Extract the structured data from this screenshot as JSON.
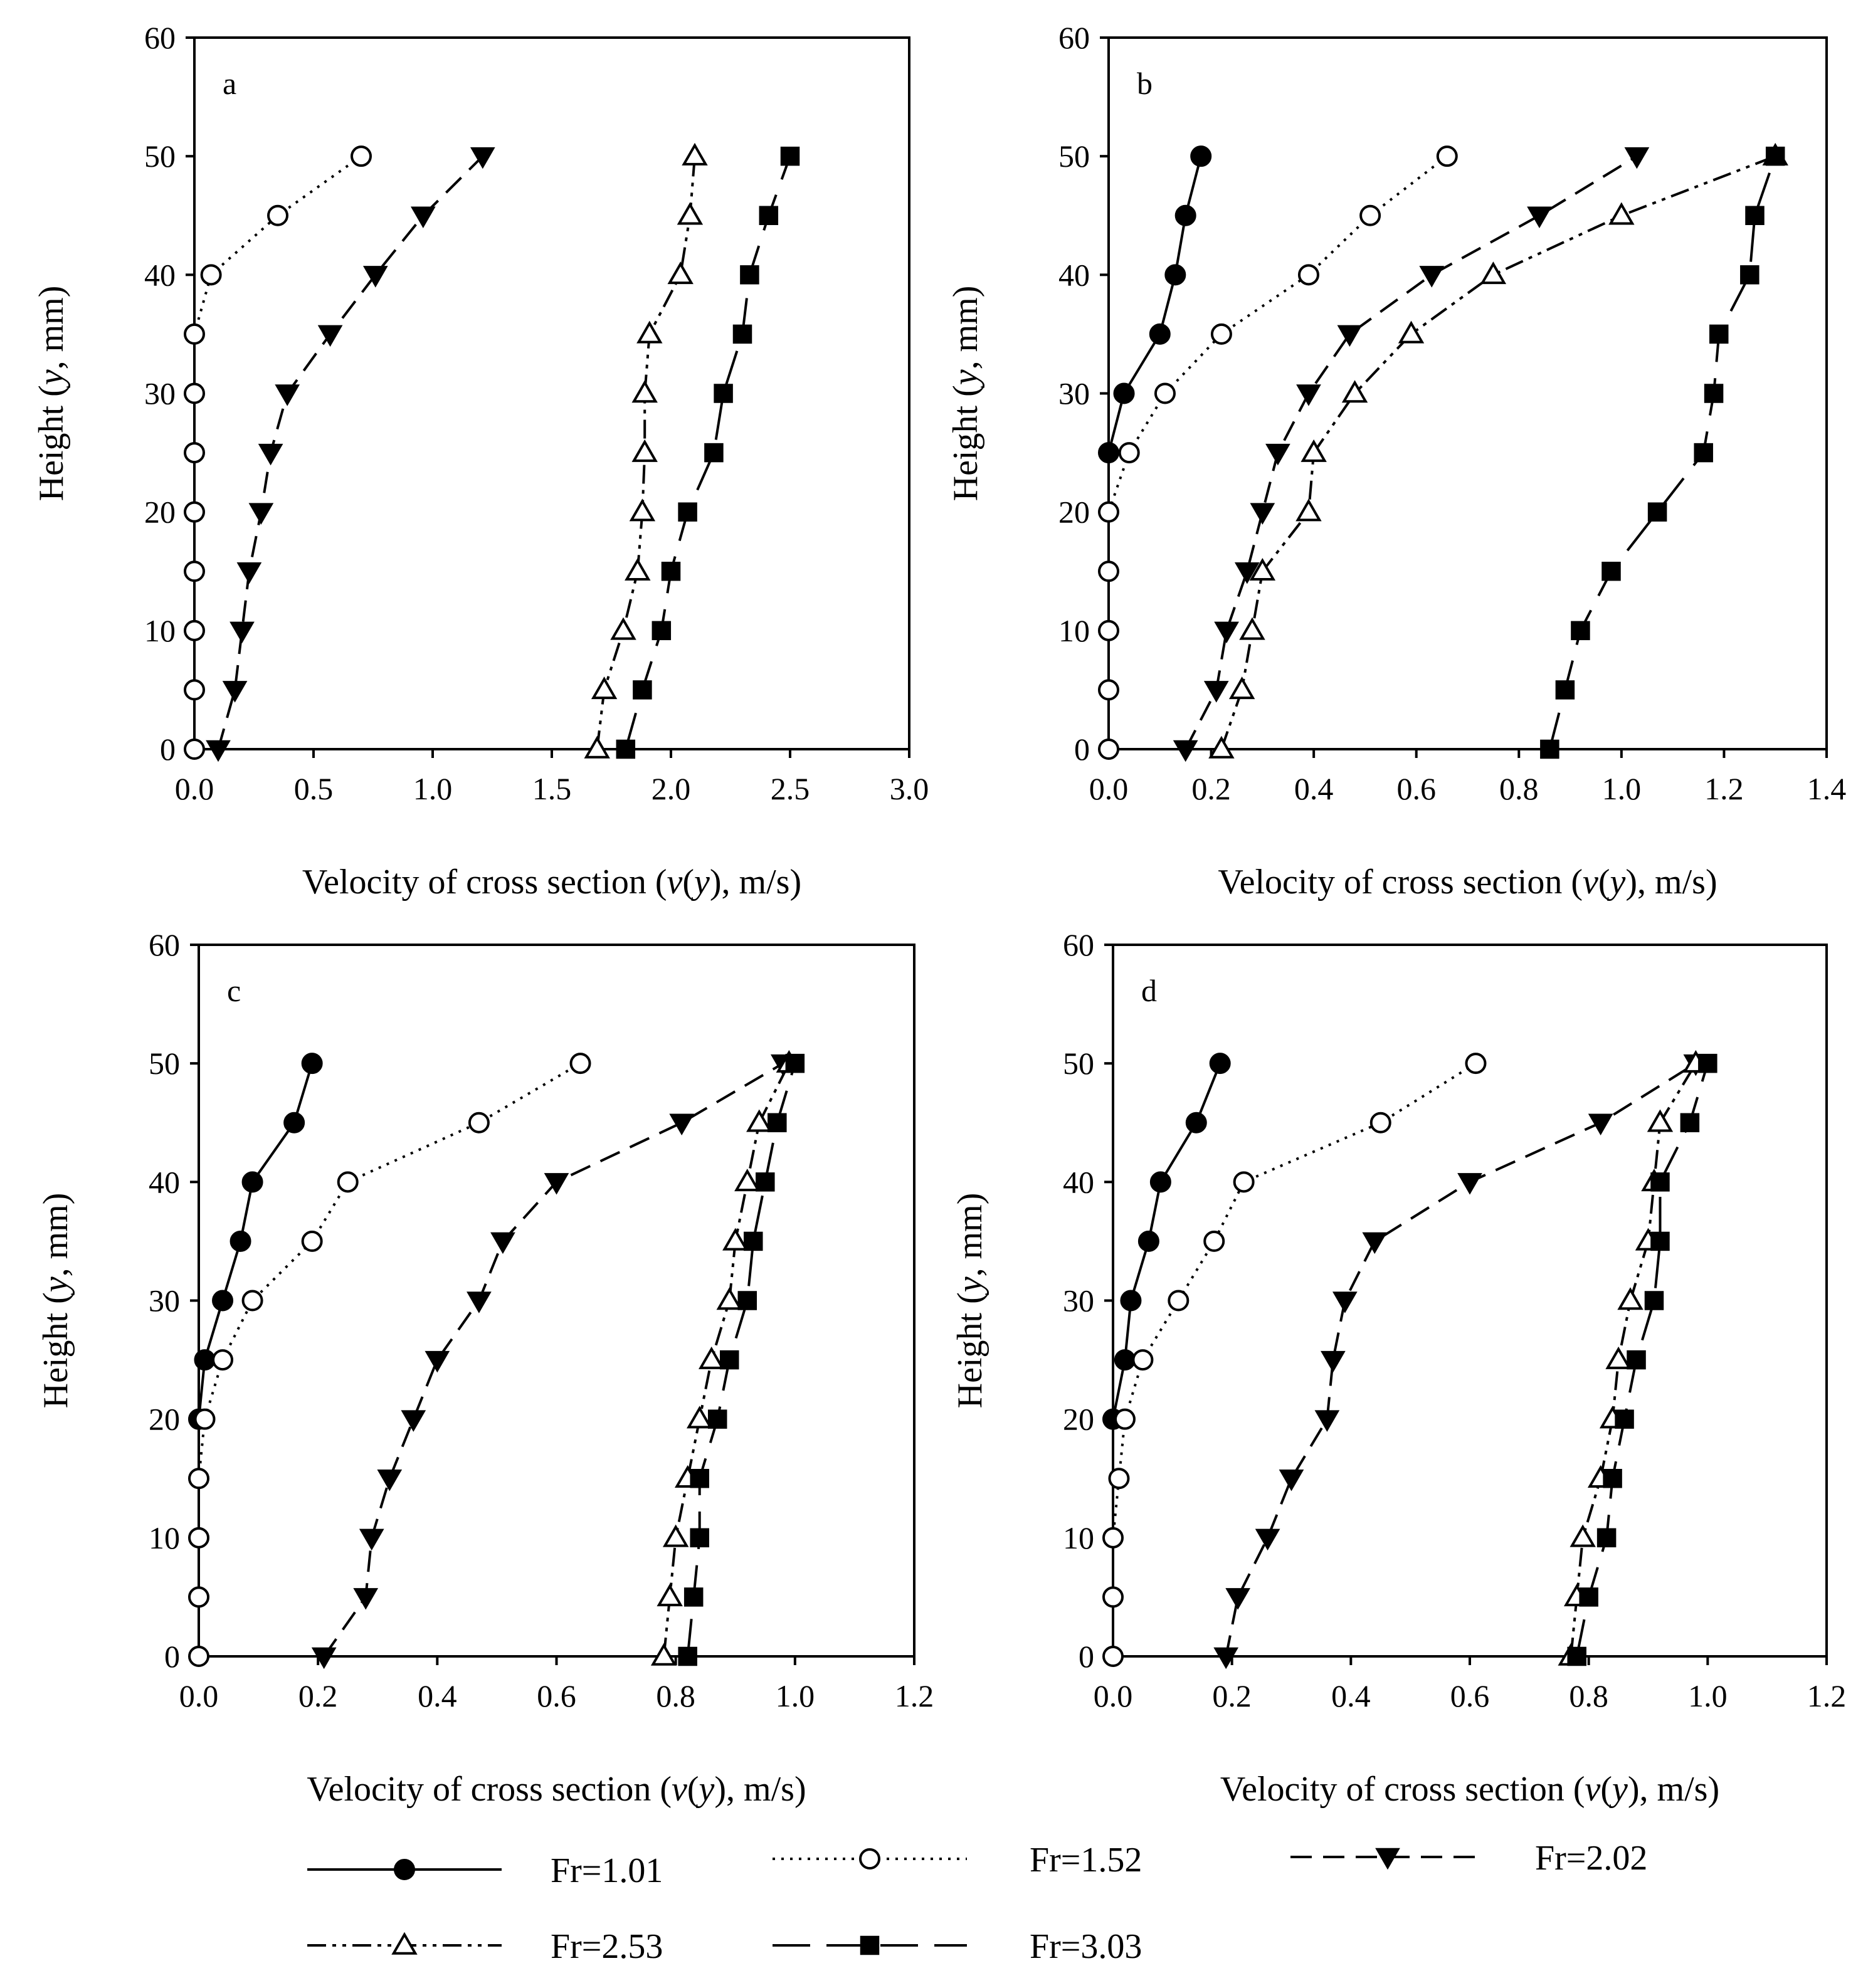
{
  "figure": {
    "legend": [
      {
        "label": "Fr=1.01",
        "series": 0
      },
      {
        "label": "Fr=1.52",
        "series": 1
      },
      {
        "label": "Fr=2.02",
        "series": 2
      },
      {
        "label": "Fr=2.53",
        "series": 3
      },
      {
        "label": "Fr=3.03",
        "series": 4
      }
    ],
    "series_styles": [
      {
        "name": "Fr=1.01",
        "marker": "circle-filled",
        "line": "solid"
      },
      {
        "name": "Fr=1.52",
        "marker": "circle-open",
        "line": "dotted"
      },
      {
        "name": "Fr=2.02",
        "marker": "triangle-down-filled",
        "line": "dashed"
      },
      {
        "name": "Fr=2.53",
        "marker": "triangle-up-open",
        "line": "dash-dot-dot"
      },
      {
        "name": "Fr=3.03",
        "marker": "square-filled",
        "line": "long-dash"
      }
    ]
  },
  "chart_data": [
    {
      "type": "line",
      "panel": "a",
      "xlabel": "Velocity of cross section (v(y), m/s)",
      "ylabel": "Height (y, mm)",
      "xlim": [
        0,
        3.0
      ],
      "ylim": [
        0,
        60
      ],
      "xticks": [
        "0.0",
        "0.5",
        "1.0",
        "1.5",
        "2.0",
        "2.5",
        "3.0"
      ],
      "xtick_values": [
        0,
        0.5,
        1.0,
        1.5,
        2.0,
        2.5,
        3.0
      ],
      "yticks": [
        "0",
        "10",
        "20",
        "30",
        "40",
        "50",
        "60"
      ],
      "ytick_values": [
        0,
        10,
        20,
        30,
        40,
        50,
        60
      ],
      "y": [
        0,
        5,
        10,
        15,
        20,
        25,
        30,
        35,
        40,
        45,
        50
      ],
      "series": [
        {
          "name": "Fr=1.52",
          "style": 1,
          "x": [
            0.0,
            0.0,
            0.0,
            0.0,
            0.0,
            0.0,
            0.0,
            0.0,
            0.07,
            0.35,
            0.7
          ]
        },
        {
          "name": "Fr=2.02",
          "style": 2,
          "x": [
            0.1,
            0.17,
            0.2,
            0.23,
            0.28,
            0.32,
            0.39,
            0.57,
            0.76,
            0.96,
            1.21
          ]
        },
        {
          "name": "Fr=2.53",
          "style": 3,
          "x": [
            1.69,
            1.72,
            1.8,
            1.86,
            1.88,
            1.89,
            1.89,
            1.91,
            2.04,
            2.08,
            2.1
          ]
        },
        {
          "name": "Fr=3.03",
          "style": 4,
          "x": [
            1.81,
            1.88,
            1.96,
            2.0,
            2.07,
            2.18,
            2.22,
            2.3,
            2.33,
            2.41,
            2.5
          ]
        }
      ]
    },
    {
      "type": "line",
      "panel": "b",
      "xlabel": "Velocity of cross section (v(y), m/s)",
      "ylabel": "Height (y, mm)",
      "xlim": [
        0,
        1.4
      ],
      "ylim": [
        0,
        60
      ],
      "xticks": [
        "0.0",
        "0.2",
        "0.4",
        "0.6",
        "0.8",
        "1.0",
        "1.2",
        "1.4"
      ],
      "xtick_values": [
        0,
        0.2,
        0.4,
        0.6,
        0.8,
        1.0,
        1.2,
        1.4
      ],
      "yticks": [
        "0",
        "10",
        "20",
        "30",
        "40",
        "50",
        "60"
      ],
      "ytick_values": [
        0,
        10,
        20,
        30,
        40,
        50,
        60
      ],
      "y": [
        0,
        5,
        10,
        15,
        20,
        25,
        30,
        35,
        40,
        45,
        50
      ],
      "series": [
        {
          "name": "Fr=1.01",
          "style": 0,
          "y": [
            25,
            30,
            35,
            40,
            45,
            50
          ],
          "x": [
            0.0,
            0.03,
            0.1,
            0.13,
            0.15,
            0.18
          ]
        },
        {
          "name": "Fr=1.52",
          "style": 1,
          "x": [
            0.0,
            0.0,
            0.0,
            0.0,
            0.0,
            0.04,
            0.11,
            0.22,
            0.39,
            0.51,
            0.66
          ]
        },
        {
          "name": "Fr=2.02",
          "style": 2,
          "x": [
            0.15,
            0.21,
            0.23,
            0.27,
            0.3,
            0.33,
            0.39,
            0.47,
            0.63,
            0.84,
            1.03
          ]
        },
        {
          "name": "Fr=2.53",
          "style": 3,
          "x": [
            0.22,
            0.26,
            0.28,
            0.3,
            0.39,
            0.4,
            0.48,
            0.59,
            0.75,
            1.0,
            1.3
          ]
        },
        {
          "name": "Fr=3.03",
          "style": 4,
          "x": [
            0.86,
            0.89,
            0.92,
            0.98,
            1.07,
            1.16,
            1.18,
            1.19,
            1.25,
            1.26,
            1.3
          ]
        }
      ]
    },
    {
      "type": "line",
      "panel": "c",
      "xlabel": "Velocity of cross section (v(y), m/s)",
      "ylabel": "Height (y, mm)",
      "xlim": [
        0,
        1.2
      ],
      "ylim": [
        0,
        60
      ],
      "xticks": [
        "0.0",
        "0.2",
        "0.4",
        "0.6",
        "0.8",
        "1.0",
        "1.2"
      ],
      "xtick_values": [
        0,
        0.2,
        0.4,
        0.6,
        0.8,
        1.0,
        1.2
      ],
      "yticks": [
        "0",
        "10",
        "20",
        "30",
        "40",
        "50",
        "60"
      ],
      "ytick_values": [
        0,
        10,
        20,
        30,
        40,
        50,
        60
      ],
      "y": [
        0,
        5,
        10,
        15,
        20,
        25,
        30,
        35,
        40,
        45,
        50
      ],
      "series": [
        {
          "name": "Fr=1.01",
          "style": 0,
          "y": [
            20,
            25,
            30,
            35,
            40,
            45,
            50
          ],
          "x": [
            0.0,
            0.01,
            0.04,
            0.07,
            0.09,
            0.16,
            0.19
          ]
        },
        {
          "name": "Fr=1.52",
          "style": 1,
          "x": [
            0.0,
            0.0,
            0.0,
            0.0,
            0.01,
            0.04,
            0.09,
            0.19,
            0.25,
            0.47,
            0.64
          ]
        },
        {
          "name": "Fr=2.02",
          "style": 2,
          "x": [
            0.21,
            0.28,
            0.29,
            0.32,
            0.36,
            0.4,
            0.47,
            0.51,
            0.6,
            0.81,
            0.98
          ]
        },
        {
          "name": "Fr=2.53",
          "style": 3,
          "x": [
            0.78,
            0.79,
            0.8,
            0.82,
            0.84,
            0.86,
            0.89,
            0.9,
            0.92,
            0.94,
            0.99
          ]
        },
        {
          "name": "Fr=3.03",
          "style": 4,
          "x": [
            0.82,
            0.83,
            0.84,
            0.84,
            0.87,
            0.89,
            0.92,
            0.93,
            0.95,
            0.97,
            1.0
          ]
        }
      ]
    },
    {
      "type": "line",
      "panel": "d",
      "xlabel": "Velocity of cross section (v(y), m/s)",
      "ylabel": "Height (y, mm)",
      "xlim": [
        0,
        1.2
      ],
      "ylim": [
        0,
        60
      ],
      "xticks": [
        "0.0",
        "0.2",
        "0.4",
        "0.6",
        "0.8",
        "1.0",
        "1.2"
      ],
      "xtick_values": [
        0,
        0.2,
        0.4,
        0.6,
        0.8,
        1.0,
        1.2
      ],
      "yticks": [
        "0",
        "10",
        "20",
        "30",
        "40",
        "50",
        "60"
      ],
      "ytick_values": [
        0,
        10,
        20,
        30,
        40,
        50,
        60
      ],
      "y": [
        0,
        5,
        10,
        15,
        20,
        25,
        30,
        35,
        40,
        45,
        50
      ],
      "series": [
        {
          "name": "Fr=1.01",
          "style": 0,
          "y": [
            20,
            25,
            30,
            35,
            40,
            45,
            50
          ],
          "x": [
            0.0,
            0.02,
            0.03,
            0.06,
            0.08,
            0.14,
            0.18
          ]
        },
        {
          "name": "Fr=1.52",
          "style": 1,
          "x": [
            0.0,
            0.0,
            0.0,
            0.01,
            0.02,
            0.05,
            0.11,
            0.17,
            0.22,
            0.45,
            0.61
          ]
        },
        {
          "name": "Fr=2.02",
          "style": 2,
          "x": [
            0.19,
            0.21,
            0.26,
            0.3,
            0.36,
            0.37,
            0.39,
            0.44,
            0.6,
            0.82,
            0.98
          ]
        },
        {
          "name": "Fr=2.53",
          "style": 3,
          "x": [
            0.77,
            0.78,
            0.79,
            0.82,
            0.84,
            0.85,
            0.87,
            0.9,
            0.91,
            0.92,
            0.98
          ]
        },
        {
          "name": "Fr=3.03",
          "style": 4,
          "x": [
            0.78,
            0.8,
            0.83,
            0.84,
            0.86,
            0.88,
            0.91,
            0.92,
            0.92,
            0.97,
            1.0
          ]
        }
      ]
    }
  ]
}
